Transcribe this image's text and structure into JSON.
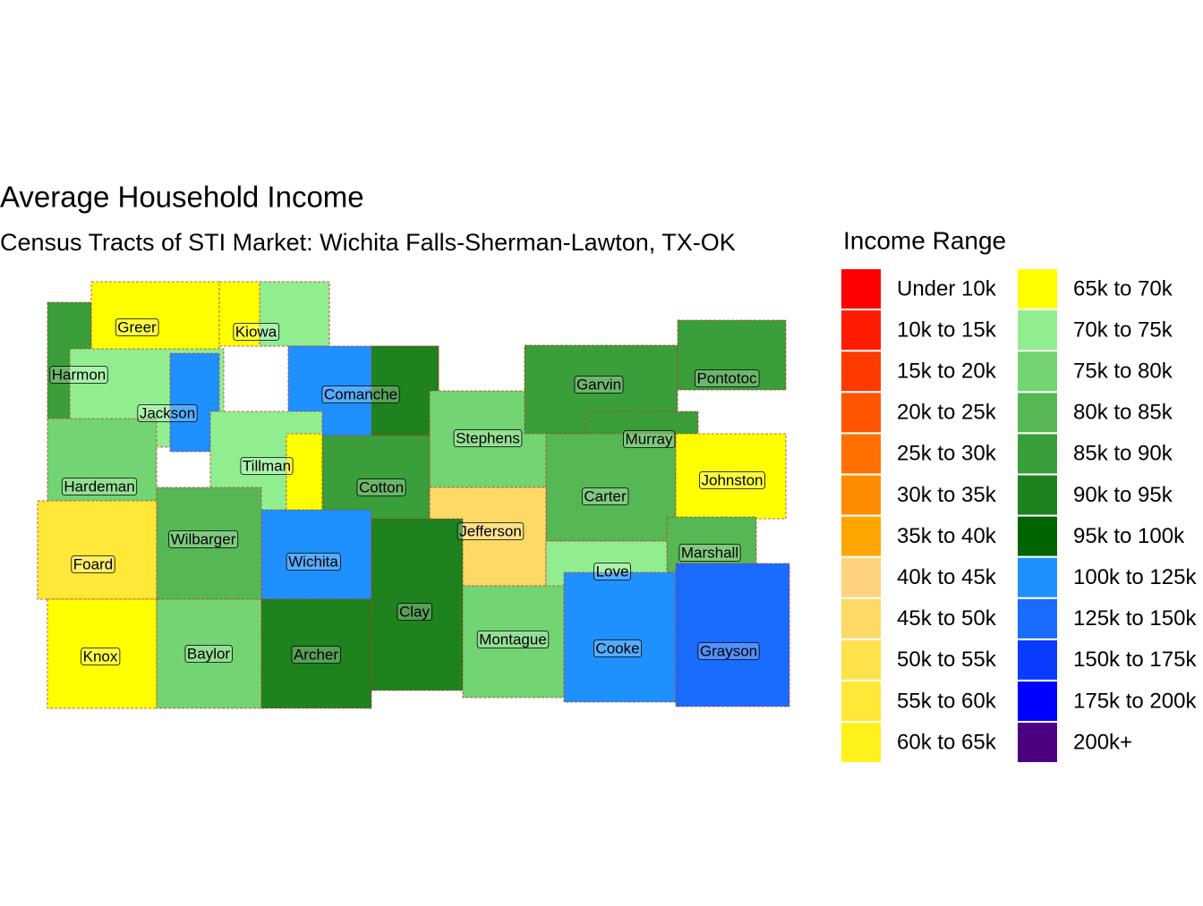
{
  "title": "Average Household Income",
  "subtitle": "Census Tracts of STI Market: Wichita Falls-Sherman-Lawton, TX-OK",
  "legend": {
    "title": "Income Range",
    "items": [
      {
        "label": "Under 10k",
        "color": "#ff0000"
      },
      {
        "label": "10k to 15k",
        "color": "#ff1c00"
      },
      {
        "label": "15k to 20k",
        "color": "#ff3a00"
      },
      {
        "label": "20k to 25k",
        "color": "#ff5500"
      },
      {
        "label": "25k to 30k",
        "color": "#ff7000"
      },
      {
        "label": "30k to 35k",
        "color": "#ff8c00"
      },
      {
        "label": "35k to 40k",
        "color": "#ffa500"
      },
      {
        "label": "40k to 45k",
        "color": "#ffd27f"
      },
      {
        "label": "45k to 50k",
        "color": "#ffd966"
      },
      {
        "label": "50k to 55k",
        "color": "#ffe14c"
      },
      {
        "label": "55k to 60k",
        "color": "#ffe838"
      },
      {
        "label": "60k to 65k",
        "color": "#fff21a"
      },
      {
        "label": "65k to 70k",
        "color": "#ffff00"
      },
      {
        "label": "70k to 75k",
        "color": "#90ee90"
      },
      {
        "label": "75k to 80k",
        "color": "#72d472"
      },
      {
        "label": "80k to 85k",
        "color": "#55b855"
      },
      {
        "label": "85k to 90k",
        "color": "#3a9e3a"
      },
      {
        "label": "90k to 95k",
        "color": "#1e821e"
      },
      {
        "label": "95k to 100k",
        "color": "#006400"
      },
      {
        "label": "100k to 125k",
        "color": "#1e90ff"
      },
      {
        "label": "125k to 150k",
        "color": "#1a6bff"
      },
      {
        "label": "150k to 175k",
        "color": "#0a3cff"
      },
      {
        "label": "175k to 200k",
        "color": "#0000ff"
      },
      {
        "label": "200k+",
        "color": "#4b0082"
      }
    ]
  },
  "counties": [
    {
      "name": "Greer"
    },
    {
      "name": "Kiowa"
    },
    {
      "name": "Harmon"
    },
    {
      "name": "Jackson"
    },
    {
      "name": "Comanche"
    },
    {
      "name": "Tillman"
    },
    {
      "name": "Stephens"
    },
    {
      "name": "Garvin"
    },
    {
      "name": "Pontotoc"
    },
    {
      "name": "Murray"
    },
    {
      "name": "Carter"
    },
    {
      "name": "Johnston"
    },
    {
      "name": "Cotton"
    },
    {
      "name": "Hardeman"
    },
    {
      "name": "Jefferson"
    },
    {
      "name": "Marshall"
    },
    {
      "name": "Love"
    },
    {
      "name": "Foard"
    },
    {
      "name": "Wilbarger"
    },
    {
      "name": "Wichita"
    },
    {
      "name": "Clay"
    },
    {
      "name": "Montague"
    },
    {
      "name": "Cooke"
    },
    {
      "name": "Grayson"
    },
    {
      "name": "Knox"
    },
    {
      "name": "Baylor"
    },
    {
      "name": "Archer"
    }
  ]
}
